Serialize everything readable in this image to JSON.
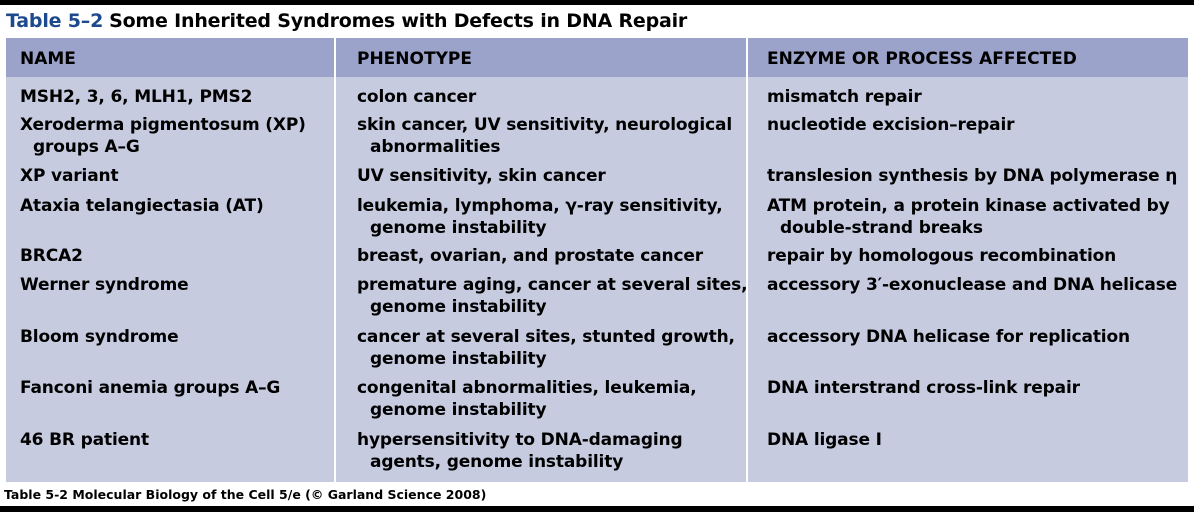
{
  "title": {
    "number": "Table 5–2",
    "text": "Some Inherited Syndromes with Defects in DNA Repair"
  },
  "headers": [
    "NAME",
    "PHENOTYPE",
    "ENZYME OR PROCESS AFFECTED"
  ],
  "rows": [
    {
      "name": [
        "MSH2, 3, 6, MLH1, PMS2"
      ],
      "phenotype": [
        "colon cancer"
      ],
      "enzyme": [
        "mismatch repair"
      ]
    },
    {
      "name": [
        "Xeroderma pigmentosum (XP)",
        "groups A–G"
      ],
      "phenotype": [
        "skin cancer, UV sensitivity, neurological",
        "abnormalities"
      ],
      "enzyme": [
        "nucleotide excision–repair"
      ]
    },
    {
      "name": [
        "XP variant"
      ],
      "phenotype": [
        "UV sensitivity, skin cancer"
      ],
      "enzyme": [
        "translesion synthesis by DNA polymerase η"
      ]
    },
    {
      "name": [
        "Ataxia telangiectasia (AT)"
      ],
      "phenotype": [
        "leukemia, lymphoma, γ-ray sensitivity,",
        "genome instability"
      ],
      "enzyme": [
        "ATM protein, a protein kinase activated by",
        "double-strand breaks"
      ]
    },
    {
      "name": [
        "BRCA2"
      ],
      "phenotype": [
        "breast, ovarian, and prostate cancer"
      ],
      "enzyme": [
        "repair by homologous recombination"
      ]
    },
    {
      "name": [
        "Werner syndrome"
      ],
      "phenotype": [
        "premature aging, cancer at several sites,",
        "genome instability"
      ],
      "enzyme": [
        "accessory 3′-exonuclease and DNA helicase"
      ]
    },
    {
      "name": [
        "Bloom syndrome"
      ],
      "phenotype": [
        "cancer at several sites, stunted growth,",
        "genome instability"
      ],
      "enzyme": [
        "accessory DNA helicase for replication"
      ]
    },
    {
      "name": [
        "Fanconi anemia groups A–G"
      ],
      "phenotype": [
        "congenital abnormalities, leukemia,",
        "genome instability"
      ],
      "enzyme": [
        "DNA interstrand cross-link repair"
      ]
    },
    {
      "name": [
        "46 BR patient"
      ],
      "phenotype": [
        "hypersensitivity to DNA-damaging",
        "agents, genome instability"
      ],
      "enzyme": [
        "DNA ligase I"
      ]
    }
  ],
  "caption": "Table 5-2  Molecular Biology of the Cell 5/e (© Garland Science 2008)"
}
